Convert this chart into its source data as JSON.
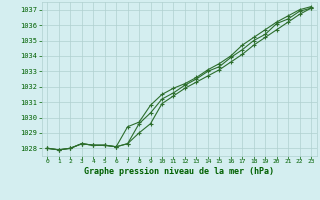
{
  "hours": [
    0,
    1,
    2,
    3,
    4,
    5,
    6,
    7,
    8,
    9,
    10,
    11,
    12,
    13,
    14,
    15,
    16,
    17,
    18,
    19,
    20,
    21,
    22,
    23
  ],
  "series1": [
    1028.0,
    1027.9,
    1028.0,
    1028.3,
    1028.2,
    1028.2,
    1028.1,
    1028.3,
    1029.6,
    1030.3,
    1031.2,
    1031.6,
    1032.1,
    1032.5,
    1033.0,
    1033.3,
    1033.9,
    1034.4,
    1035.0,
    1035.4,
    1036.1,
    1036.4,
    1036.9,
    1037.1
  ],
  "series2": [
    1028.0,
    1027.9,
    1028.0,
    1028.3,
    1028.2,
    1028.2,
    1028.1,
    1029.4,
    1029.7,
    1030.8,
    1031.5,
    1031.9,
    1032.2,
    1032.6,
    1033.1,
    1033.5,
    1034.0,
    1034.7,
    1035.2,
    1035.7,
    1036.2,
    1036.6,
    1037.0,
    1037.2
  ],
  "series3": [
    1028.0,
    1027.9,
    1028.0,
    1028.3,
    1028.2,
    1028.2,
    1028.1,
    1028.3,
    1029.0,
    1029.6,
    1030.9,
    1031.4,
    1031.9,
    1032.3,
    1032.7,
    1033.1,
    1033.6,
    1034.1,
    1034.7,
    1035.2,
    1035.7,
    1036.2,
    1036.7,
    1037.1
  ],
  "line_color": "#2d6e2d",
  "marker_color": "#2d6e2d",
  "bg_color": "#d4eef0",
  "grid_color": "#b0d0d0",
  "xlabel": "Graphe pression niveau de la mer (hPa)",
  "xlabel_color": "#006000",
  "tick_color": "#006000",
  "ylim": [
    1027.5,
    1037.5
  ],
  "xlim": [
    -0.5,
    23.5
  ],
  "yticks": [
    1028,
    1029,
    1030,
    1031,
    1032,
    1033,
    1034,
    1035,
    1036,
    1037
  ],
  "xticks": [
    0,
    1,
    2,
    3,
    4,
    5,
    6,
    7,
    8,
    9,
    10,
    11,
    12,
    13,
    14,
    15,
    16,
    17,
    18,
    19,
    20,
    21,
    22,
    23
  ],
  "marker_size": 2.5,
  "line_width": 0.8
}
